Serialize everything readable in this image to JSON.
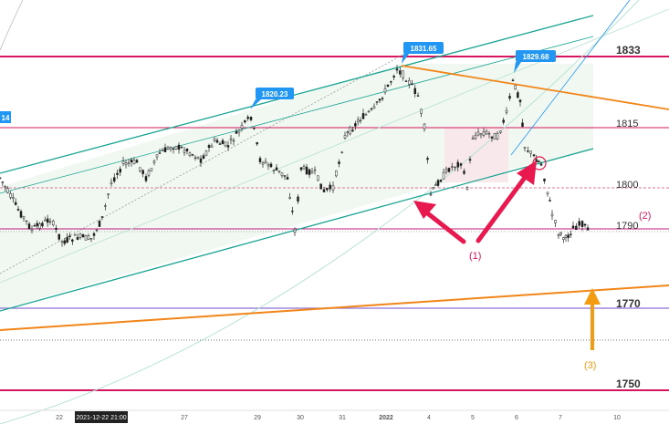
{
  "colors": {
    "background": "#ffffff",
    "magenta": "#d6155f",
    "magenta_light": "#e07598",
    "teal": "#1aa592",
    "teal_light": "#93d9c8",
    "orange": "#f28518",
    "purple": "#8e6fd6",
    "blue_tag": "#2196f3",
    "candle": "#1f1f1f",
    "shade_green": "#eef7ee",
    "shade_pink": "#f8e6ea"
  },
  "price_levels": [
    {
      "label": "1833",
      "price": 1833
    },
    {
      "label": "1815",
      "price": 1815
    },
    {
      "label": "1800",
      "price": 1800
    },
    {
      "label": "1790",
      "price": 1790
    },
    {
      "label": "1770",
      "price": 1770
    },
    {
      "label": "1750",
      "price": 1750
    }
  ],
  "price_tags": [
    {
      "label": "1831.65"
    },
    {
      "label": "1829.68"
    },
    {
      "label": "1820.23"
    },
    {
      "label": "14"
    }
  ],
  "annotations": {
    "a1": "(1)",
    "a2": "(2)",
    "a3": "(3)"
  },
  "x_axis": {
    "ticks": [
      "22",
      "27",
      "29",
      "30",
      "31",
      "2022",
      "4",
      "5",
      "6",
      "7",
      "10"
    ],
    "highlighted_label": "2021-12-22   21:00"
  }
}
